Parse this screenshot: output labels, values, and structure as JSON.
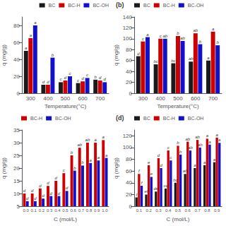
{
  "chart_data": [
    {
      "type": "bar",
      "xlabel": "Temperature(°C)",
      "ylabel": "q (mg/g)",
      "categories": [
        "300",
        "400",
        "500",
        "600",
        "700"
      ],
      "series": [
        {
          "name": "BC",
          "color": "#1a1a1a",
          "values": [
            50,
            10,
            13,
            12,
            16
          ],
          "annotations": [
            "a",
            "d",
            "c",
            "c",
            "b"
          ]
        },
        {
          "name": "BC-H",
          "color": "#cc0000",
          "values": [
            65,
            10,
            15,
            14,
            15
          ],
          "annotations": [
            "a",
            "d",
            "d",
            "d",
            "d"
          ]
        },
        {
          "name": "BC-OH",
          "color": "#1111cc",
          "values": [
            80,
            42,
            20,
            18,
            13
          ],
          "annotations": [
            "a",
            "b",
            "c",
            "c",
            "d"
          ]
        }
      ],
      "ylim": [
        0,
        90
      ],
      "yticks": [
        0,
        20,
        40,
        60,
        80
      ],
      "grid": false,
      "legend": "upper right"
    },
    {
      "type": "bar",
      "title": "(b)",
      "xlabel": "Temperature(°C)",
      "ylabel": "q (mg/g)",
      "categories": [
        "300",
        "400",
        "500",
        "600",
        "700"
      ],
      "series": [
        {
          "name": "BC",
          "color": "#1a1a1a",
          "values": [
            68,
            53,
            55,
            58,
            60
          ],
          "annotations": [
            "d",
            "bc",
            "bc",
            "ab",
            "a"
          ]
        },
        {
          "name": "BC-H",
          "color": "#cc0000",
          "values": [
            95,
            100,
            105,
            110,
            113
          ],
          "annotations": [
            "c",
            "c",
            "b",
            "ab",
            "a"
          ]
        },
        {
          "name": "BC-OH",
          "color": "#1111cc",
          "values": [
            103,
            100,
            96,
            90,
            88
          ],
          "annotations": [
            "a",
            "ab",
            "ab",
            "b",
            "b"
          ]
        }
      ],
      "ylim": [
        0,
        140
      ],
      "yticks": [
        0,
        20,
        40,
        60,
        80,
        100,
        120,
        140
      ],
      "grid": false,
      "legend": "upper left"
    },
    {
      "type": "bar",
      "xlabel": "C (mol/L)",
      "ylabel": "q (mg/g)",
      "categories": [
        "0.0",
        "0.1",
        "0.2",
        "0.3",
        "0.4",
        "0.5",
        "0.6",
        "0.7",
        "0.8",
        "0.9",
        "1.0"
      ],
      "series": [
        {
          "name": "BC-H",
          "color": "#cc0000",
          "values": [
            10,
            10,
            12,
            13,
            15,
            18,
            25,
            28,
            30,
            30,
            31
          ],
          "annotations": [
            "d",
            "d",
            "d",
            "d",
            "d",
            "c",
            "b",
            "ab",
            "ab",
            "a",
            "a"
          ]
        },
        {
          "name": "BC-OH",
          "color": "#1111cc",
          "values": [
            7,
            7,
            8,
            9,
            9,
            11,
            19,
            21,
            22,
            23,
            24
          ],
          "annotations": [
            "d",
            "d",
            "d",
            "d",
            "d",
            "d",
            "b",
            "b",
            "a",
            "a",
            "a"
          ]
        }
      ],
      "ylim": [
        5,
        35
      ],
      "yticks": [
        5,
        10,
        15,
        20,
        25,
        30,
        35
      ],
      "grid": false,
      "legend": "upper left"
    },
    {
      "type": "bar",
      "title": "(d)",
      "xlabel": "C (mol/L)",
      "ylabel": "q (mg/g)",
      "categories": [
        "0.1",
        "0.2",
        "0.3",
        "0.4",
        "0.5",
        "0.6",
        "0.7",
        "0.8",
        "0.9"
      ],
      "series": [
        {
          "name": "BC",
          "color": "#1a1a1a",
          "values": [
            15,
            20,
            25,
            30,
            40,
            55,
            65,
            70,
            75
          ],
          "annotations": [
            "f",
            "ef",
            "de",
            "cd",
            "bc",
            "ab",
            "a",
            "a",
            "a"
          ]
        },
        {
          "name": "BC-H",
          "color": "#cc0000",
          "values": [
            55,
            70,
            82,
            95,
            103,
            110,
            113,
            115,
            117
          ],
          "annotations": [
            "f",
            "e",
            "d",
            "c",
            "b",
            "ab",
            "ab",
            "a",
            "a"
          ]
        },
        {
          "name": "BC-OH",
          "color": "#1111cc",
          "values": [
            35,
            50,
            65,
            78,
            88,
            95,
            100,
            105,
            108
          ],
          "annotations": [
            "f",
            "e",
            "d",
            "c",
            "b",
            "ab",
            "ab",
            "a",
            "a"
          ]
        }
      ],
      "ylim": [
        0,
        130
      ],
      "yticks": [
        0,
        20,
        40,
        60,
        80,
        100,
        120
      ],
      "grid": false,
      "legend": "upper left"
    }
  ]
}
